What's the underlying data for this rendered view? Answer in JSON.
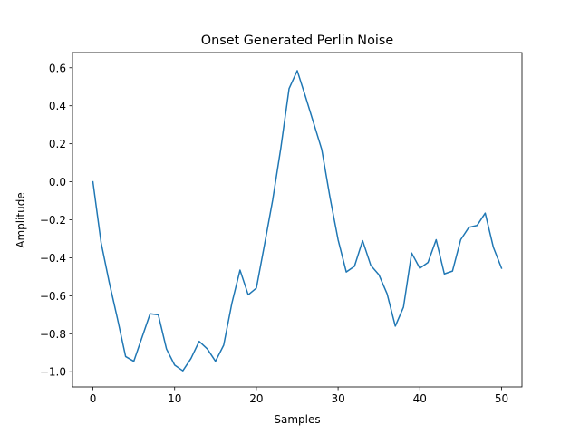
{
  "chart_data": {
    "type": "line",
    "title": "Onset Generated Perlin Noise",
    "xlabel": "Samples",
    "ylabel": "Amplitude",
    "xlim": [
      -2.5,
      52.5
    ],
    "ylim": [
      -1.08,
      0.68
    ],
    "xticks": [
      0,
      10,
      20,
      30,
      40,
      50
    ],
    "yticks": [
      -1.0,
      -0.8,
      -0.6,
      -0.4,
      -0.2,
      0.0,
      0.2,
      0.4,
      0.6
    ],
    "ytick_labels": [
      "−1.0",
      "−0.8",
      "−0.6",
      "−0.4",
      "−0.2",
      "0.0",
      "0.2",
      "0.4",
      "0.6"
    ],
    "grid": false,
    "series": [
      {
        "color": "#1f77b4",
        "x": [
          0,
          1,
          2,
          3,
          4,
          5,
          6,
          7,
          8,
          9,
          10,
          11,
          12,
          13,
          14,
          15,
          16,
          17,
          18,
          19,
          20,
          21,
          22,
          23,
          24,
          25,
          26,
          27,
          28,
          29,
          30,
          31,
          32,
          33,
          34,
          35,
          36,
          37,
          38,
          39,
          40,
          41,
          42,
          43,
          44,
          45,
          46,
          47,
          48,
          49,
          50
        ],
        "values": [
          0.0,
          -0.32,
          -0.53,
          -0.72,
          -0.92,
          -0.945,
          -0.82,
          -0.695,
          -0.7,
          -0.88,
          -0.965,
          -0.995,
          -0.93,
          -0.84,
          -0.88,
          -0.945,
          -0.86,
          -0.64,
          -0.465,
          -0.595,
          -0.56,
          -0.33,
          -0.095,
          0.18,
          0.49,
          0.585,
          0.45,
          0.31,
          0.17,
          -0.08,
          -0.305,
          -0.475,
          -0.445,
          -0.31,
          -0.44,
          -0.49,
          -0.59,
          -0.76,
          -0.66,
          -0.375,
          -0.455,
          -0.425,
          -0.305,
          -0.485,
          -0.47,
          -0.305,
          -0.24,
          -0.23,
          -0.165,
          -0.345,
          -0.455
        ]
      }
    ]
  }
}
